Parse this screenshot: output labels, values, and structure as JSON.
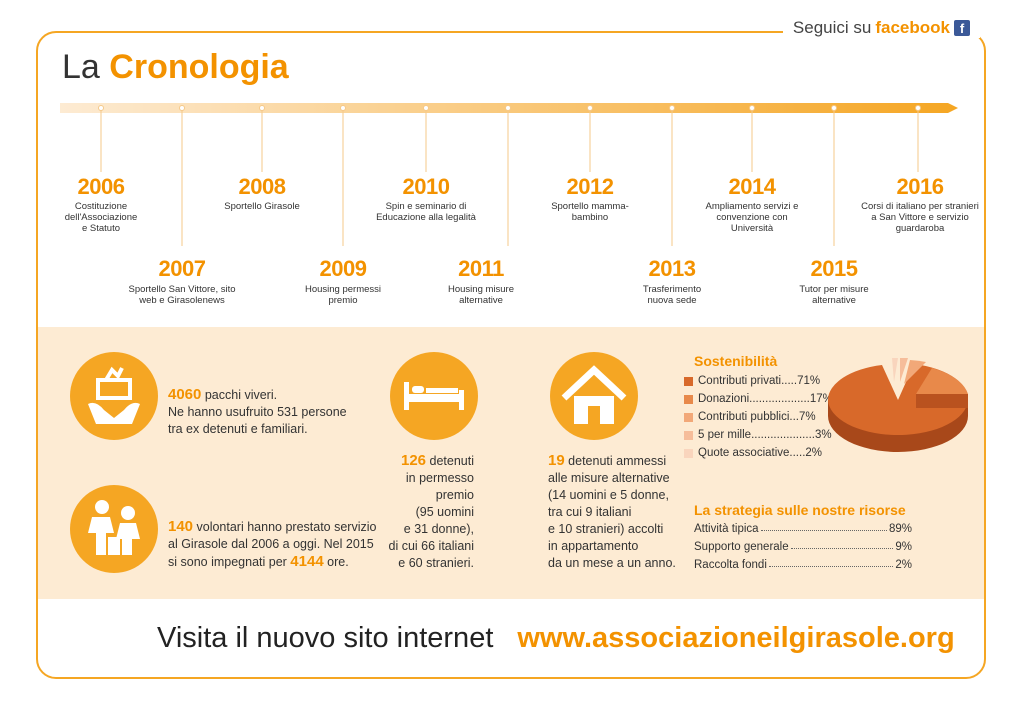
{
  "header": {
    "follow_text": "Seguici su",
    "facebook": "facebook",
    "title_prefix": "La",
    "title_main": "Cronologia"
  },
  "timeline": [
    {
      "year": "2006",
      "desc": "Costituzione dell'Associazione e Statuto"
    },
    {
      "year": "2007",
      "desc": "Sportello San Vittore, sito web e Girasolenews"
    },
    {
      "year": "2008",
      "desc": "Sportello Girasole"
    },
    {
      "year": "2009",
      "desc": "Housing permessi premio"
    },
    {
      "year": "2010",
      "desc": "Spin e seminario di Educazione alla legalità"
    },
    {
      "year": "2011",
      "desc": "Housing misure alternative"
    },
    {
      "year": "2012",
      "desc": "Sportello mamma-bambino"
    },
    {
      "year": "2013",
      "desc": "Trasferimento nuova sede"
    },
    {
      "year": "2014",
      "desc": "Ampliamento servizi e convenzione con Università"
    },
    {
      "year": "2015",
      "desc": "Tutor per misure alternative"
    },
    {
      "year": "2016",
      "desc": "Corsi di italiano per stranieri a San Vittore e servizio guardaroba"
    }
  ],
  "stats": {
    "food": {
      "num": "4060",
      "l1": " pacchi viveri.",
      "l2": "Ne hanno usufruito 531 persone",
      "l3": "tra ex detenuti e familiari."
    },
    "vol": {
      "num": "140",
      "l1": " volontari hanno prestato servizio",
      "l2": "al Girasole dal 2006 a oggi. Nel 2015",
      "l3a": "si sono impegnati per ",
      "num2": "4144",
      "l3b": " ore."
    },
    "det": {
      "num": "126",
      "l1": " detenuti",
      "l2": "in permesso",
      "l3": "premio",
      "l4": "(95 uomini",
      "l5": "e 31 donne),",
      "l6": "di cui 66 italiani",
      "l7": "e 60 stranieri."
    },
    "alt": {
      "num": "19",
      "l1": " detenuti ammessi",
      "l2": "alle misure alternative",
      "l3": "(14 uomini e 5 donne,",
      "l4": "tra cui 9 italiani",
      "l5": "e 10 stranieri) accolti",
      "l6": "in appartamento",
      "l7": "da un mese a un anno."
    }
  },
  "sustain": {
    "title": "Sostenibilità",
    "items": [
      {
        "label": "Contributi privati",
        "dots": ".....",
        "value": "71%",
        "color": "#d8692a"
      },
      {
        "label": "Donazioni",
        "dots": "...................",
        "value": "17%",
        "color": "#e8894a"
      },
      {
        "label": "Contributi pubblici",
        "dots": "...",
        "value": "7%",
        "color": "#f2a878"
      },
      {
        "label": "5 per mille",
        "dots": "....................",
        "value": "3%",
        "color": "#f6bd9a"
      },
      {
        "label": "Quote associative",
        "dots": ".....",
        "value": "2%",
        "color": "#f9d5bd"
      }
    ]
  },
  "strategy": {
    "title": "La strategia sulle nostre risorse",
    "items": [
      {
        "label": "Attività tipica",
        "value": "89%"
      },
      {
        "label": "Supporto generale",
        "value": "9%"
      },
      {
        "label": "Raccolta fondi",
        "value": "2%"
      }
    ]
  },
  "footer": {
    "text": "Visita il nuovo sito internet",
    "url": "www.associazioneilgirasole.org"
  }
}
